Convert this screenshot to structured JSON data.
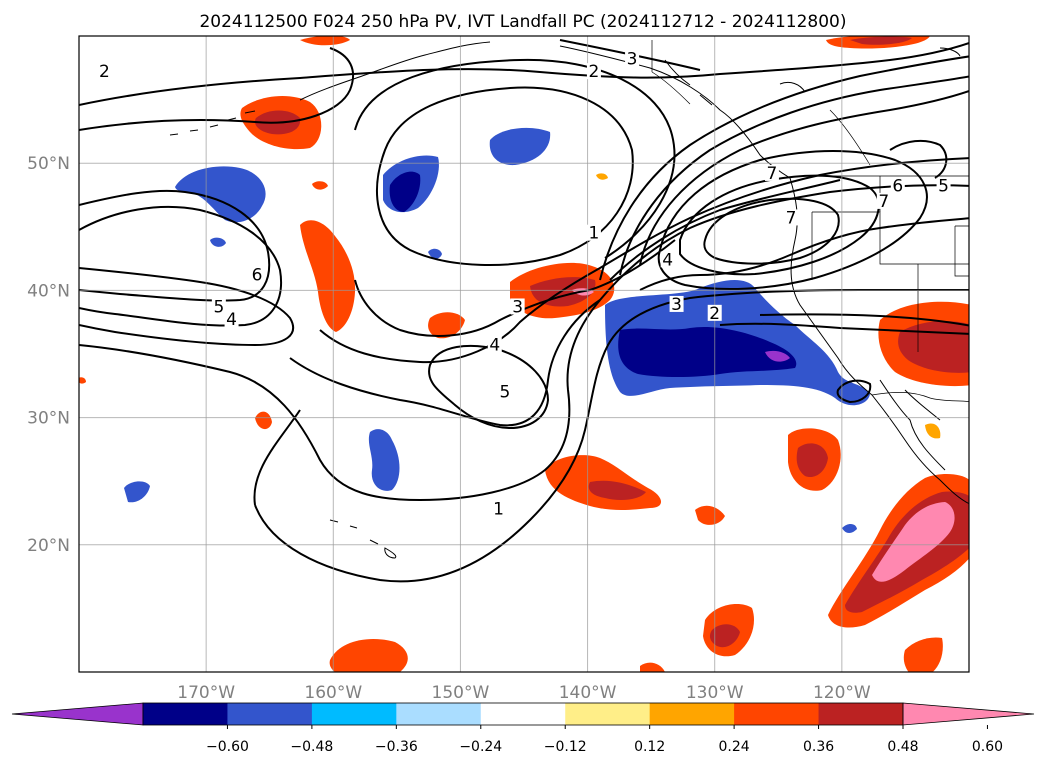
{
  "title": "2024112500 F024 250 hPa PV, IVT Landfall PC (2024112712 - 2024112800)",
  "map": {
    "extent": {
      "lon_min": -180,
      "lon_max": -110,
      "lat_min": 10,
      "lat_max": 60
    },
    "lon_ticks": [
      {
        "value": -170,
        "label": "170°W"
      },
      {
        "value": -160,
        "label": "160°W"
      },
      {
        "value": -150,
        "label": "150°W"
      },
      {
        "value": -140,
        "label": "140°W"
      },
      {
        "value": -130,
        "label": "130°W"
      },
      {
        "value": -120,
        "label": "120°W"
      }
    ],
    "lat_ticks": [
      {
        "value": 50,
        "label": "50°N"
      },
      {
        "value": 40,
        "label": "40°N"
      },
      {
        "value": 30,
        "label": "30°N"
      },
      {
        "value": 20,
        "label": "20°N"
      }
    ],
    "contour_labels": [
      {
        "text": "2",
        "lon": -178.0,
        "lat": 57.0
      },
      {
        "text": "2",
        "lon": -139.5,
        "lat": 57.0
      },
      {
        "text": "3",
        "lon": -136.5,
        "lat": 58.0
      },
      {
        "text": "1",
        "lon": -139.5,
        "lat": 44.3
      },
      {
        "text": "4",
        "lon": -133.7,
        "lat": 42.2
      },
      {
        "text": "6",
        "lon": -166.0,
        "lat": 41.0
      },
      {
        "text": "5",
        "lon": -169.0,
        "lat": 38.5
      },
      {
        "text": "4",
        "lon": -168.0,
        "lat": 37.5
      },
      {
        "text": "3",
        "lon": -145.5,
        "lat": 38.5
      },
      {
        "text": "4",
        "lon": -147.3,
        "lat": 35.5
      },
      {
        "text": "5",
        "lon": -146.5,
        "lat": 31.8
      },
      {
        "text": "3",
        "lon": -133.0,
        "lat": 38.7
      },
      {
        "text": "2",
        "lon": -130.0,
        "lat": 38.0
      },
      {
        "text": "1",
        "lon": -147.0,
        "lat": 22.6
      },
      {
        "text": "7",
        "lon": -116.7,
        "lat": 46.8
      },
      {
        "text": "6",
        "lon": -115.6,
        "lat": 48.0
      },
      {
        "text": "5",
        "lon": -112.0,
        "lat": 48.0
      },
      {
        "text": "7",
        "lon": -125.5,
        "lat": 49.0
      },
      {
        "text": "7",
        "lon": -124.0,
        "lat": 45.5
      }
    ]
  },
  "colorbar": {
    "colors": [
      "#9933cc",
      "#000088",
      "#3355cc",
      "#00bbff",
      "#aaddff",
      "#ffffff",
      "#ffee88",
      "#ffa500",
      "#ff4500",
      "#bb2222",
      "#ff88b0"
    ],
    "tick_labels": [
      "−0.60",
      "−0.48",
      "−0.36",
      "−0.24",
      "−0.12",
      "0.12",
      "0.24",
      "0.36",
      "0.48",
      "0.60"
    ]
  }
}
